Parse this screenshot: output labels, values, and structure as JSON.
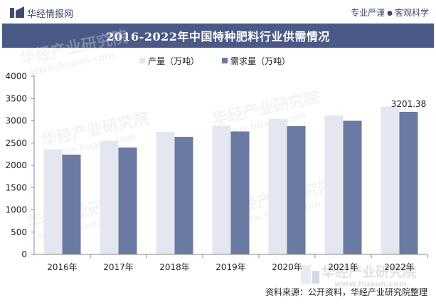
{
  "header": {
    "brand": "华经情报网",
    "tagline_left": "专业严谨",
    "tagline_right": "客观科学"
  },
  "colors": {
    "title_bar": "#4b5987",
    "production": "#e4e7ef",
    "demand": "#6b7aa3",
    "axis_text": "#222222"
  },
  "watermark": {
    "cn": "华经产业研究院",
    "en": "www.huaon.com"
  },
  "footer": {
    "source": "资料来源：公开资料，华经产业研究院整理"
  },
  "chart_data": {
    "type": "bar",
    "title": "2016-2022年中国特种肥料行业供需情况",
    "categories": [
      "2016年",
      "2017年",
      "2018年",
      "2019年",
      "2020年",
      "2021年",
      "2022年"
    ],
    "series": [
      {
        "name": "产量（万吨）",
        "values": [
          2360,
          2550,
          2750,
          2890,
          3040,
          3120,
          3320
        ]
      },
      {
        "name": "需求量（万吨）",
        "values": [
          2240,
          2400,
          2640,
          2760,
          2880,
          3000,
          3201.38
        ]
      }
    ],
    "data_labels": [
      {
        "series": 1,
        "index": 6,
        "text": "3201.38"
      }
    ],
    "ylim": [
      0,
      4000
    ],
    "yticks": [
      0,
      500,
      1000,
      1500,
      2000,
      2500,
      3000,
      3500,
      4000
    ],
    "xlabel": "",
    "ylabel": "",
    "legend": "top-center",
    "grid": false
  }
}
